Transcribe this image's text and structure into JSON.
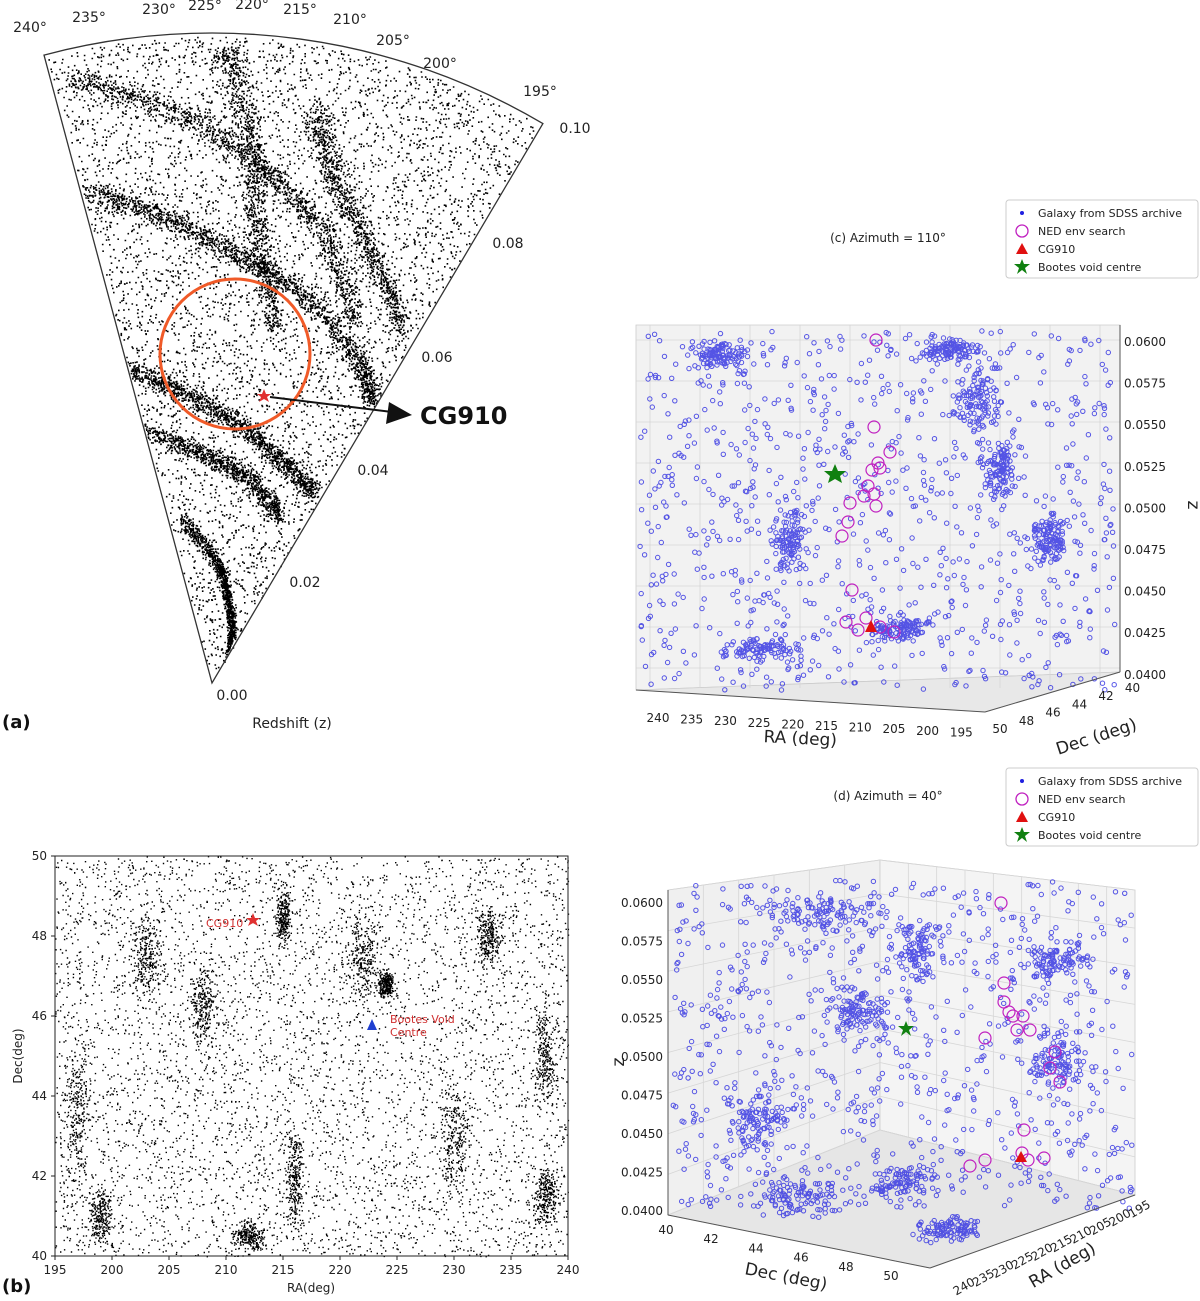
{
  "panels": {
    "a": {
      "panel_label": "(a)",
      "angle_ticks": [
        "240°",
        "235°",
        "230°",
        "225°",
        "220°",
        "215°",
        "210°",
        "205°",
        "200°",
        "195°"
      ],
      "radial_ticks": [
        "0.00",
        "0.02",
        "0.04",
        "0.06",
        "0.08",
        "0.10"
      ],
      "xlabel": "Redshift (z)",
      "annotation": "CG910",
      "highlight_color": "#f05a28",
      "point_color": "#000000"
    },
    "b": {
      "panel_label": "(b)",
      "xlabel": "RA(deg)",
      "ylabel": "Dec(deg)",
      "x_ticks": [
        "195",
        "200",
        "205",
        "210",
        "215",
        "220",
        "225",
        "230",
        "235",
        "240"
      ],
      "y_ticks": [
        "40",
        "42",
        "44",
        "46",
        "48",
        "50"
      ],
      "cg910_label": "CG910",
      "void_label_line1": "Bootes Void",
      "void_label_line2": "Centre",
      "cg910_color": "#e03030",
      "void_color": "#1f3fd0"
    },
    "c": {
      "title": "(c) Azimuth = 110$^{\\circ}$",
      "title_display": "(c) Azimuth = 110°",
      "xlabel": "RA (deg)",
      "ylabel": "Dec (deg)",
      "zlabel": "z",
      "ra_ticks": [
        "240",
        "235",
        "230",
        "225",
        "220",
        "215",
        "210",
        "205",
        "200",
        "195"
      ],
      "dec_ticks": [
        "50",
        "48",
        "46",
        "44",
        "42",
        "40"
      ],
      "z_ticks": [
        "0.0600",
        "0.0575",
        "0.0550",
        "0.0525",
        "0.0500",
        "0.0475",
        "0.0450",
        "0.0425",
        "0.0400"
      ]
    },
    "d": {
      "title_display": "(d) Azimuth = 40°",
      "xlabel": "Dec (deg)",
      "ylabel": "RA (deg)",
      "zlabel": "z",
      "dec_ticks": [
        "40",
        "42",
        "44",
        "46",
        "48",
        "50"
      ],
      "ra_ticks": [
        "240",
        "235",
        "230",
        "225",
        "220",
        "215",
        "210",
        "205",
        "200",
        "195"
      ],
      "z_ticks": [
        "0.0600",
        "0.0575",
        "0.0550",
        "0.0525",
        "0.0500",
        "0.0475",
        "0.0450",
        "0.0425",
        "0.0400"
      ]
    }
  },
  "legend": {
    "items": [
      "Galaxy from SDSS archive",
      "NED env search",
      "CG910",
      "Bootes void centre"
    ],
    "galaxy_color": "#1f1fe0",
    "ned_color": "#c020c0",
    "cg910_color": "#e01010",
    "void_color": "#108010"
  },
  "chart_data": [
    {
      "type": "scatter",
      "panel": "a",
      "projection": "polar-wedge",
      "theta_range_deg": [
        195,
        240
      ],
      "r_range": [
        0.0,
        0.1
      ],
      "xlabel": "Redshift (z)",
      "markers": [
        {
          "name": "CG910",
          "ra": 212.5,
          "z": 0.042
        }
      ],
      "highlight_region": {
        "center_ra": 223,
        "center_z": 0.052,
        "shape": "circle"
      }
    },
    {
      "type": "scatter",
      "panel": "b",
      "xlabel": "RA(deg)",
      "ylabel": "Dec(deg)",
      "xlim": [
        195,
        240
      ],
      "ylim": [
        40,
        50
      ],
      "markers": [
        {
          "name": "CG910",
          "ra": 212.5,
          "dec": 48.4,
          "marker": "star"
        },
        {
          "name": "Bootes Void Centre",
          "ra": 223,
          "dec": 45.8,
          "marker": "triangle"
        }
      ]
    },
    {
      "type": "scatter",
      "panel": "c",
      "dimensions": 3,
      "azimuth_deg": 110,
      "xlim": [
        195,
        240
      ],
      "ylim": [
        40,
        50
      ],
      "zlim": [
        0.04,
        0.06
      ],
      "series": [
        "Galaxy from SDSS archive",
        "NED env search",
        "CG910",
        "Bootes void centre"
      ]
    },
    {
      "type": "scatter",
      "panel": "d",
      "dimensions": 3,
      "azimuth_deg": 40,
      "xlim": [
        40,
        50
      ],
      "ylim": [
        195,
        240
      ],
      "zlim": [
        0.04,
        0.06
      ],
      "series": [
        "Galaxy from SDSS archive",
        "NED env search",
        "CG910",
        "Bootes void centre"
      ]
    }
  ]
}
